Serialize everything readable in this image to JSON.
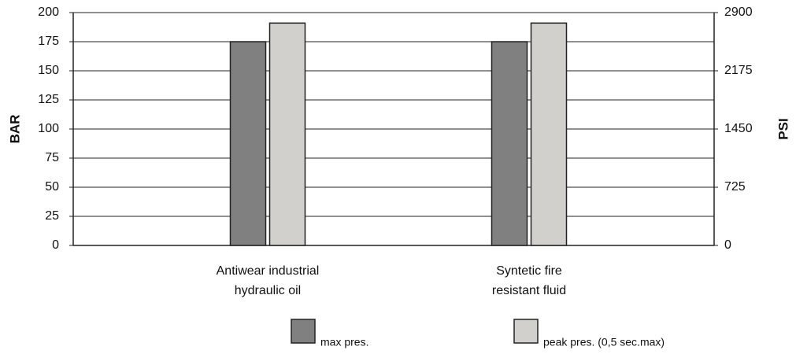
{
  "chart_data": {
    "type": "bar",
    "categories": [
      "Antiwear industrial\nhydraulic oil",
      "Syntetic fire\nresistant fluid"
    ],
    "series": [
      {
        "name": "max pres.",
        "color": "#808080",
        "values": [
          175,
          175
        ]
      },
      {
        "name": "peak pres. (0,5 sec.max)",
        "color": "#d1d0cc",
        "values": [
          191,
          191
        ]
      }
    ],
    "y_label": "BAR",
    "y2_label": "PSI",
    "ylim": [
      0,
      200
    ],
    "yticks": [
      0,
      25,
      50,
      75,
      100,
      125,
      150,
      175,
      200
    ],
    "y2lim": [
      0,
      2900
    ],
    "y2ticks": [
      0,
      725,
      1450,
      2175,
      2900
    ],
    "grid": true
  }
}
